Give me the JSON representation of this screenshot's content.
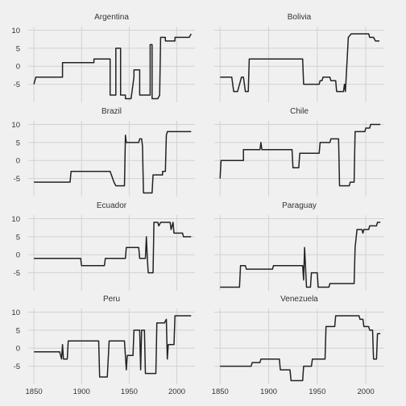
{
  "chart_data": {
    "type": "line",
    "layout": "faceted 4x2 small multiples",
    "background": "#f0f0f0",
    "grid_color": "#d2d2d2",
    "line_color": "#222222",
    "grid": true,
    "xlim": [
      1844,
      2019
    ],
    "ylim": [
      -10,
      11
    ],
    "x_ticks": [
      1850,
      1900,
      1950,
      2000
    ],
    "y_ticks": [
      -5,
      0,
      5,
      10
    ],
    "y_tick_labels": [
      "-5",
      "0",
      "5",
      "10"
    ],
    "panels": [
      {
        "title": "Argentina",
        "points": [
          [
            1850,
            -5
          ],
          [
            1852,
            -3
          ],
          [
            1880,
            -3
          ],
          [
            1880,
            1
          ],
          [
            1913,
            1
          ],
          [
            1913,
            2
          ],
          [
            1930,
            2
          ],
          [
            1930,
            -8
          ],
          [
            1936,
            -8
          ],
          [
            1936,
            5
          ],
          [
            1941,
            5
          ],
          [
            1941,
            -8
          ],
          [
            1946,
            -8
          ],
          [
            1946,
            -9
          ],
          [
            1952,
            -9
          ],
          [
            1955,
            -3
          ],
          [
            1955,
            -1
          ],
          [
            1961,
            -1
          ],
          [
            1961,
            -8
          ],
          [
            1972,
            -8
          ],
          [
            1972,
            6
          ],
          [
            1974,
            6
          ],
          [
            1974,
            -9
          ],
          [
            1980,
            -9
          ],
          [
            1982,
            -8
          ],
          [
            1983,
            8
          ],
          [
            1988,
            8
          ],
          [
            1988,
            7
          ],
          [
            1998,
            7
          ],
          [
            1998,
            8
          ],
          [
            2013,
            8
          ],
          [
            2015,
            9
          ]
        ]
      },
      {
        "title": "Bolivia",
        "points": [
          [
            1850,
            -3
          ],
          [
            1862,
            -3
          ],
          [
            1864,
            -7
          ],
          [
            1868,
            -7
          ],
          [
            1872,
            -3
          ],
          [
            1874,
            -3
          ],
          [
            1876,
            -7
          ],
          [
            1879,
            -7
          ],
          [
            1880,
            2
          ],
          [
            1935,
            2
          ],
          [
            1936,
            -5
          ],
          [
            1952,
            -5
          ],
          [
            1953,
            -4
          ],
          [
            1955,
            -4
          ],
          [
            1956,
            -3
          ],
          [
            1963,
            -3
          ],
          [
            1964,
            -4
          ],
          [
            1969,
            -4
          ],
          [
            1970,
            -7
          ],
          [
            1977,
            -7
          ],
          [
            1978,
            -5
          ],
          [
            1979,
            -7
          ],
          [
            1982,
            8
          ],
          [
            1985,
            9
          ],
          [
            2003,
            9
          ],
          [
            2004,
            8
          ],
          [
            2008,
            8
          ],
          [
            2010,
            7
          ],
          [
            2014,
            7
          ]
        ]
      },
      {
        "title": "Brazil",
        "points": [
          [
            1850,
            -6
          ],
          [
            1888,
            -6
          ],
          [
            1889,
            -3
          ],
          [
            1930,
            -3
          ],
          [
            1934,
            -6
          ],
          [
            1936,
            -7
          ],
          [
            1945,
            -7
          ],
          [
            1946,
            7
          ],
          [
            1947,
            5
          ],
          [
            1960,
            5
          ],
          [
            1961,
            6
          ],
          [
            1963,
            6
          ],
          [
            1964,
            4
          ],
          [
            1965,
            -9
          ],
          [
            1974,
            -9
          ],
          [
            1975,
            -4
          ],
          [
            1985,
            -4
          ],
          [
            1985,
            -3
          ],
          [
            1988,
            -3
          ],
          [
            1989,
            7
          ],
          [
            1990,
            8
          ],
          [
            2015,
            8
          ]
        ]
      },
      {
        "title": "Chile",
        "points": [
          [
            1850,
            -5
          ],
          [
            1851,
            0
          ],
          [
            1874,
            0
          ],
          [
            1874,
            3
          ],
          [
            1891,
            3
          ],
          [
            1892,
            5
          ],
          [
            1893,
            3
          ],
          [
            1924,
            3
          ],
          [
            1925,
            -2
          ],
          [
            1931,
            -2
          ],
          [
            1932,
            2
          ],
          [
            1952,
            2
          ],
          [
            1953,
            5
          ],
          [
            1963,
            5
          ],
          [
            1964,
            6
          ],
          [
            1972,
            6
          ],
          [
            1973,
            -7
          ],
          [
            1983,
            -7
          ],
          [
            1984,
            -6
          ],
          [
            1988,
            -6
          ],
          [
            1989,
            8
          ],
          [
            1999,
            8
          ],
          [
            2000,
            9
          ],
          [
            2004,
            9
          ],
          [
            2005,
            10
          ],
          [
            2015,
            10
          ]
        ]
      },
      {
        "title": "Ecuador",
        "points": [
          [
            1850,
            -1
          ],
          [
            1899,
            -1
          ],
          [
            1900,
            -3
          ],
          [
            1924,
            -3
          ],
          [
            1925,
            -1
          ],
          [
            1946,
            -1
          ],
          [
            1947,
            2
          ],
          [
            1960,
            2
          ],
          [
            1961,
            -1
          ],
          [
            1967,
            -1
          ],
          [
            1968,
            5
          ],
          [
            1969,
            -1
          ],
          [
            1970,
            -5
          ],
          [
            1975,
            -5
          ],
          [
            1976,
            9
          ],
          [
            1980,
            9
          ],
          [
            1981,
            8
          ],
          [
            1983,
            9
          ],
          [
            1993,
            9
          ],
          [
            1994,
            7
          ],
          [
            1996,
            9
          ],
          [
            1997,
            6
          ],
          [
            2006,
            6
          ],
          [
            2007,
            5
          ],
          [
            2015,
            5
          ]
        ]
      },
      {
        "title": "Paraguay",
        "points": [
          [
            1850,
            -9
          ],
          [
            1870,
            -9
          ],
          [
            1871,
            -3
          ],
          [
            1876,
            -3
          ],
          [
            1877,
            -4
          ],
          [
            1904,
            -4
          ],
          [
            1905,
            -3
          ],
          [
            1935,
            -3
          ],
          [
            1936,
            -7
          ],
          [
            1937,
            2
          ],
          [
            1939,
            -9
          ],
          [
            1943,
            -9
          ],
          [
            1944,
            -5
          ],
          [
            1950,
            -5
          ],
          [
            1951,
            -9
          ],
          [
            1962,
            -9
          ],
          [
            1963,
            -8
          ],
          [
            1988,
            -8
          ],
          [
            1989,
            2
          ],
          [
            1991,
            7
          ],
          [
            1996,
            7
          ],
          [
            1997,
            6
          ],
          [
            1998,
            7
          ],
          [
            2003,
            7
          ],
          [
            2004,
            8
          ],
          [
            2011,
            8
          ],
          [
            2012,
            9
          ],
          [
            2015,
            9
          ]
        ]
      },
      {
        "title": "Peru",
        "points": [
          [
            1850,
            -1
          ],
          [
            1877,
            -1
          ],
          [
            1879,
            -3
          ],
          [
            1880,
            1
          ],
          [
            1881,
            -3
          ],
          [
            1885,
            -3
          ],
          [
            1886,
            2
          ],
          [
            1918,
            2
          ],
          [
            1919,
            -8
          ],
          [
            1927,
            -8
          ],
          [
            1929,
            2
          ],
          [
            1945,
            2
          ],
          [
            1947,
            -6
          ],
          [
            1948,
            -2
          ],
          [
            1954,
            -2
          ],
          [
            1955,
            5
          ],
          [
            1961,
            5
          ],
          [
            1962,
            -6
          ],
          [
            1963,
            5
          ],
          [
            1966,
            5
          ],
          [
            1967,
            -7
          ],
          [
            1978,
            -7
          ],
          [
            1979,
            7
          ],
          [
            1987,
            7
          ],
          [
            1989,
            8
          ],
          [
            1990,
            -3
          ],
          [
            1991,
            1
          ],
          [
            1997,
            1
          ],
          [
            1998,
            9
          ],
          [
            2015,
            9
          ]
        ]
      },
      {
        "title": "Venezuela",
        "points": [
          [
            1850,
            -5
          ],
          [
            1882,
            -5
          ],
          [
            1883,
            -4
          ],
          [
            1891,
            -4
          ],
          [
            1892,
            -3
          ],
          [
            1911,
            -3
          ],
          [
            1912,
            -6
          ],
          [
            1922,
            -6
          ],
          [
            1923,
            -9
          ],
          [
            1935,
            -9
          ],
          [
            1936,
            -5
          ],
          [
            1944,
            -5
          ],
          [
            1945,
            -3
          ],
          [
            1958,
            -3
          ],
          [
            1959,
            6
          ],
          [
            1968,
            6
          ],
          [
            1969,
            9
          ],
          [
            1993,
            9
          ],
          [
            1994,
            8
          ],
          [
            1997,
            8
          ],
          [
            1998,
            6
          ],
          [
            2003,
            6
          ],
          [
            2004,
            5
          ],
          [
            2007,
            5
          ],
          [
            2008,
            -3
          ],
          [
            2011,
            -3
          ],
          [
            2012,
            4
          ],
          [
            2015,
            4
          ]
        ]
      }
    ]
  }
}
